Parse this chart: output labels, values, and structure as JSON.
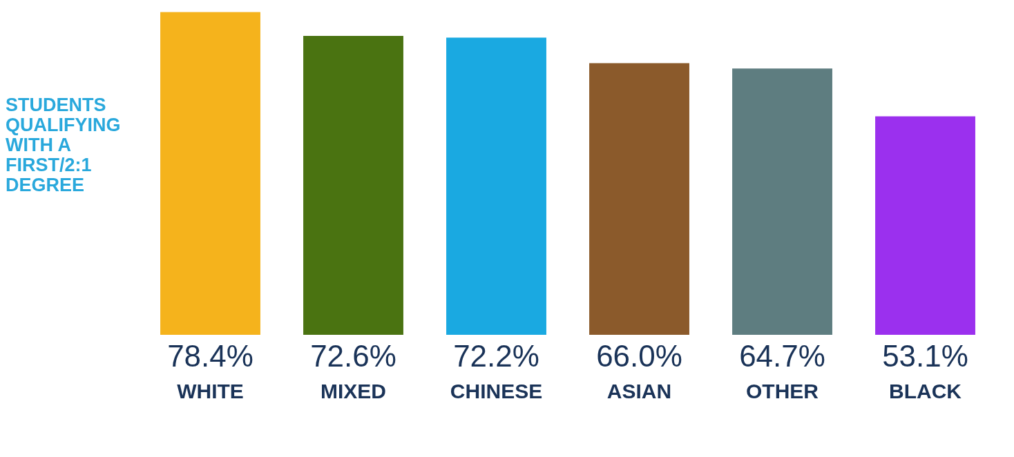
{
  "chart_data": {
    "type": "bar",
    "title": "STUDENTS QUALIFYING WITH A FIRST/2:1 DEGREE",
    "categories": [
      "WHITE",
      "MIXED",
      "CHINESE",
      "ASIAN",
      "OTHER",
      "BLACK"
    ],
    "values": [
      78.4,
      72.6,
      72.2,
      66.0,
      64.7,
      53.1
    ],
    "colors": [
      "#f5b31c",
      "#4a7311",
      "#1aa9e1",
      "#8b5a2b",
      "#5e7d80",
      "#9b30ee"
    ],
    "value_labels": [
      "78.4%",
      "72.6%",
      "72.2%",
      "66.0%",
      "64.7%",
      "53.1%"
    ],
    "grid": false,
    "legend": false
  }
}
